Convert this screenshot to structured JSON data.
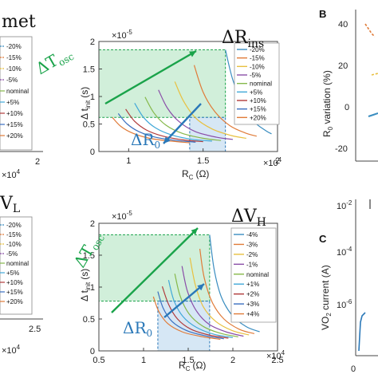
{
  "chart_data": [
    {
      "type": "line",
      "panel": "ΔR_ins",
      "title": "ΔR",
      "title_sub": "ins",
      "xlabel": "R",
      "xlabel_sub": "C",
      "xlabel_unit": "(Ω)",
      "ylabel": "Δ t",
      "ylabel_sub": "init",
      "ylabel_unit": "(s)",
      "xlim": [
        8000,
        20000
      ],
      "ylim": [
        0,
        2e-05
      ],
      "x_ticks": [
        "1",
        "1.5",
        "2"
      ],
      "x_tick_values": [
        10000,
        15000,
        20000
      ],
      "x_exponent": "×10",
      "x_exponent_power": "4",
      "y_ticks": [
        "0",
        "0.5",
        "1",
        "1.5",
        "2"
      ],
      "y_tick_values": [
        0,
        5e-06,
        1e-05,
        1.5e-05,
        2e-05
      ],
      "y_exponent": "×10",
      "y_exponent_power": "-5",
      "legend": [
        "-20%",
        "-15%",
        "-10%",
        "-5%",
        "nominal",
        "+5%",
        "+10%",
        "+15%",
        "+20%"
      ],
      "series": [
        {
          "name": "-20%",
          "color": "#3a8dc0",
          "x": [
            16500,
            17000,
            17700,
            18400,
            19200,
            19600
          ],
          "y": [
            1.85e-05,
            1.3e-05,
            8.5e-06,
            5.5e-06,
            3.8e-06,
            3.2e-06
          ]
        },
        {
          "name": "-15%",
          "color": "#e07b39",
          "x": [
            14400,
            15000,
            15800,
            16800,
            17900,
            18600
          ],
          "y": [
            1.57e-05,
            1.08e-05,
            7.2e-06,
            4.7e-06,
            3.3e-06,
            2.8e-06
          ]
        },
        {
          "name": "-10%",
          "color": "#e8c040",
          "x": [
            13100,
            13700,
            14500,
            15600,
            16900,
            17900
          ],
          "y": [
            1.27e-05,
            9.1e-06,
            6.1e-06,
            4.1e-06,
            2.9e-06,
            2.4e-06
          ]
        },
        {
          "name": "-5%",
          "color": "#8a4ea8",
          "x": [
            12000,
            12600,
            13400,
            14500,
            15900,
            17000
          ],
          "y": [
            1.12e-05,
            7.9e-06,
            5.4e-06,
            3.6e-06,
            2.6e-06,
            2.2e-06
          ]
        },
        {
          "name": "nominal",
          "color": "#86b84a",
          "x": [
            11100,
            11700,
            12500,
            13600,
            15000,
            16200
          ],
          "y": [
            9.9e-06,
            7e-06,
            4.8e-06,
            3.3e-06,
            2.4e-06,
            2e-06
          ]
        },
        {
          "name": "+5%",
          "color": "#40a8d8",
          "x": [
            10400,
            11000,
            11800,
            12900,
            14300,
            15600
          ],
          "y": [
            8.8e-06,
            6.2e-06,
            4.3e-06,
            3e-06,
            2.2e-06,
            1.9e-06
          ]
        },
        {
          "name": "+10%",
          "color": "#b03a3a",
          "x": [
            9800,
            10400,
            11200,
            12300,
            13700,
            15000
          ],
          "y": [
            7.7e-06,
            5.5e-06,
            3.9e-06,
            2.8e-06,
            2.1e-06,
            1.8e-06
          ]
        },
        {
          "name": "+15%",
          "color": "#3a6fc0",
          "x": [
            9300,
            9900,
            10700,
            11800,
            13200,
            14500
          ],
          "y": [
            6.9e-06,
            5e-06,
            3.6e-06,
            2.6e-06,
            2e-06,
            1.7e-06
          ]
        },
        {
          "name": "+20%",
          "color": "#e07b39",
          "x": [
            8900,
            9500,
            10300,
            11400,
            12800,
            14100
          ],
          "y": [
            6.2e-06,
            4.5e-06,
            3.3e-06,
            2.4e-06,
            1.9e-06,
            1.6e-06
          ]
        }
      ],
      "annotations": [
        {
          "text": "ΔT",
          "sub": "osc",
          "color": "#1aa34a"
        },
        {
          "text": "ΔR",
          "sub": "0",
          "color": "#2a78b8"
        }
      ],
      "shaded_regions": [
        {
          "color": "#1aa34a",
          "x": [
            8000,
            16500
          ],
          "y": [
            6.2e-06,
            1.85e-05
          ]
        },
        {
          "color": "#2a78b8",
          "x": [
            14100,
            16500
          ],
          "y": [
            0,
            6.2e-06
          ]
        }
      ]
    },
    {
      "type": "line",
      "panel": "ΔV_H",
      "title": "ΔV",
      "title_sub": "H",
      "xlabel": "R",
      "xlabel_sub": "C",
      "xlabel_unit": "(Ω)",
      "ylabel": "Δ t",
      "ylabel_sub": "init",
      "ylabel_unit": "(s)",
      "xlim": [
        5000,
        25000
      ],
      "ylim": [
        0,
        2e-05
      ],
      "x_ticks": [
        "0.5",
        "1",
        "1.5",
        "2",
        "2.5"
      ],
      "x_tick_values": [
        5000,
        10000,
        15000,
        20000,
        25000
      ],
      "x_exponent": "×10",
      "x_exponent_power": "4",
      "y_ticks": [
        "0",
        "0.5",
        "1",
        "1.5",
        "2"
      ],
      "y_tick_values": [
        0,
        5e-06,
        1e-05,
        1.5e-05,
        2e-05
      ],
      "y_exponent": "×10",
      "y_exponent_power": "-5",
      "legend": [
        "-4%",
        "-3%",
        "-2%",
        "-1%",
        "nominal",
        "+1%",
        "+2%",
        "+3%",
        "+4%"
      ],
      "series": [
        {
          "name": "-4%",
          "color": "#3a8dc0",
          "x": [
            17400,
            17900,
            18700,
            19900,
            21500,
            23000
          ],
          "y": [
            1.82e-05,
            1.28e-05,
            8.5e-06,
            5.6e-06,
            3.8e-06,
            3e-06
          ]
        },
        {
          "name": "-3%",
          "color": "#e07b39",
          "x": [
            16300,
            16800,
            17700,
            19000,
            20700,
            22400
          ],
          "y": [
            1.6e-05,
            1.14e-05,
            7.6e-06,
            5e-06,
            3.4e-06,
            2.7e-06
          ]
        },
        {
          "name": "-2%",
          "color": "#e8c040",
          "x": [
            15200,
            15800,
            16700,
            18100,
            19900,
            21800
          ],
          "y": [
            1.46e-05,
            1.03e-05,
            6.9e-06,
            4.6e-06,
            3.2e-06,
            2.5e-06
          ]
        },
        {
          "name": "-1%",
          "color": "#8a4ea8",
          "x": [
            14300,
            14900,
            15900,
            17300,
            19200,
            21200
          ],
          "y": [
            1.33e-05,
            9.4e-06,
            6.3e-06,
            4.2e-06,
            3e-06,
            2.3e-06
          ]
        },
        {
          "name": "nominal",
          "color": "#86b84a",
          "x": [
            13500,
            14100,
            15100,
            16600,
            18500,
            20600
          ],
          "y": [
            1.21e-05,
            8.6e-06,
            5.8e-06,
            3.9e-06,
            2.8e-06,
            2.2e-06
          ]
        },
        {
          "name": "+1%",
          "color": "#40a8d8",
          "x": [
            12800,
            13400,
            14400,
            15900,
            17900,
            20000
          ],
          "y": [
            1.11e-05,
            7.9e-06,
            5.4e-06,
            3.7e-06,
            2.6e-06,
            2.1e-06
          ]
        },
        {
          "name": "+2%",
          "color": "#b03a3a",
          "x": [
            12100,
            12800,
            13800,
            15300,
            17300,
            19500
          ],
          "y": [
            1.01e-05,
            7.3e-06,
            5e-06,
            3.4e-06,
            2.5e-06,
            2e-06
          ]
        },
        {
          "name": "+3%",
          "color": "#3a6fc0",
          "x": [
            11600,
            12200,
            13200,
            14800,
            16800,
            19000
          ],
          "y": [
            9.3e-06,
            6.7e-06,
            4.6e-06,
            3.2e-06,
            2.4e-06,
            1.9e-06
          ]
        },
        {
          "name": "+4%",
          "color": "#e07b39",
          "x": [
            11100,
            11700,
            12700,
            14300,
            16300,
            18600
          ],
          "y": [
            8.5e-06,
            6.2e-06,
            4.3e-06,
            3e-06,
            2.3e-06,
            1.8e-06
          ]
        }
      ],
      "annotations": [
        {
          "text": "ΔT",
          "sub": "osc",
          "color": "#1aa34a"
        },
        {
          "text": "ΔR",
          "sub": "0",
          "color": "#2a78b8"
        }
      ],
      "shaded_regions": [
        {
          "color": "#1aa34a",
          "x": [
            5000,
            17400
          ],
          "y": [
            7.8e-06,
            1.82e-05
          ]
        },
        {
          "color": "#2a78b8",
          "x": [
            11600,
            17400
          ],
          "y": [
            0,
            7.8e-06
          ]
        }
      ]
    }
  ],
  "partial_panels": {
    "top_left_title": "met",
    "top_left_legend": [
      "-20%",
      "-15%",
      "-10%",
      "-5%",
      "nominal",
      "+5%",
      "+10%",
      "+15%",
      "+20%"
    ],
    "top_left_xtick": "2",
    "top_left_exponent": "×10",
    "top_left_exponent_power": "4",
    "bottom_left_title": "V",
    "bottom_left_title_sub": "L",
    "bottom_left_legend": [
      "-20%",
      "-15%",
      "-10%",
      "-5%",
      "nominal",
      "+5%",
      "+10%",
      "+15%",
      "+20%"
    ],
    "bottom_left_xtick": "2.5",
    "bottom_left_exponent": "×10",
    "bottom_left_exponent_power": "4",
    "panel_b_letter": "B",
    "panel_b_ylabel": "R",
    "panel_b_ylabel_sub": "0",
    "panel_b_ylabel_rest": " variation (%)",
    "panel_b_yticks": [
      "40",
      "20",
      "0",
      "-20"
    ],
    "panel_c_letter": "C",
    "panel_c_ylabel": "VO",
    "panel_c_ylabel_sub": "2",
    "panel_c_ylabel_rest": " current (A)",
    "panel_c_yticks_base": [
      "10",
      "10",
      "10"
    ],
    "panel_c_yticks_pow": [
      "-2",
      "-4",
      "-6"
    ],
    "panel_c_bottom_tick": "0"
  },
  "colors": {
    "green": "#1aa34a",
    "blue": "#2a78b8",
    "green_fill": "#c9ecd3",
    "blue_fill": "#cfe3f3"
  }
}
